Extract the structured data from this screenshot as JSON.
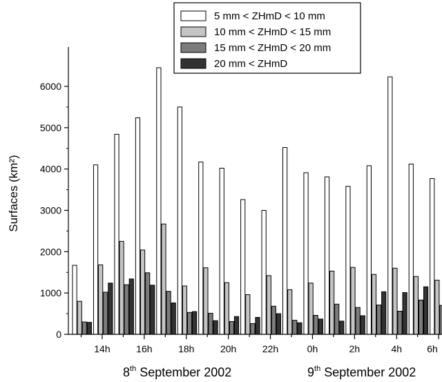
{
  "chart_data": {
    "type": "bar",
    "title": "",
    "ylabel": "Surfaces (km²)",
    "ylim": [
      0,
      6800
    ],
    "yticks": [
      0,
      1000,
      2000,
      3000,
      4000,
      5000,
      6000
    ],
    "x_tick_labels": [
      "14h",
      "16h",
      "18h",
      "20h",
      "22h",
      "0h",
      "2h",
      "4h",
      "6h"
    ],
    "date_labels": [
      {
        "day": "8",
        "sup": "th",
        "rest": " September 2002"
      },
      {
        "day": "9",
        "sup": "th",
        "rest": " September 2002"
      }
    ],
    "legend_position": "top-right",
    "series": [
      {
        "name": "5 mm < ZHmD < 10 mm",
        "color": "#ffffff",
        "values": [
          1670,
          4100,
          4840,
          5240,
          6450,
          5500,
          4170,
          4020,
          3260,
          3000,
          4520,
          3910,
          3810,
          3580,
          4080,
          6230,
          4120,
          3770
        ]
      },
      {
        "name": "10 mm < ZHmD < 15 mm",
        "color": "#c4c4c4",
        "values": [
          800,
          1680,
          2250,
          2040,
          2670,
          1170,
          1610,
          1250,
          960,
          1420,
          1080,
          1240,
          1530,
          1620,
          1450,
          1600,
          1400,
          1310
        ]
      },
      {
        "name": "15 mm < ZHmD < 20 mm",
        "color": "#7c7c7c",
        "values": [
          300,
          1020,
          1200,
          1490,
          1040,
          530,
          510,
          310,
          260,
          680,
          340,
          460,
          730,
          650,
          710,
          560,
          830,
          700
        ]
      },
      {
        "name": "20 mm < ZHmD",
        "color": "#333333",
        "values": [
          290,
          1240,
          1340,
          1190,
          760,
          550,
          330,
          430,
          410,
          500,
          280,
          370,
          320,
          450,
          1030,
          1010,
          1150,
          1000
        ]
      }
    ]
  }
}
